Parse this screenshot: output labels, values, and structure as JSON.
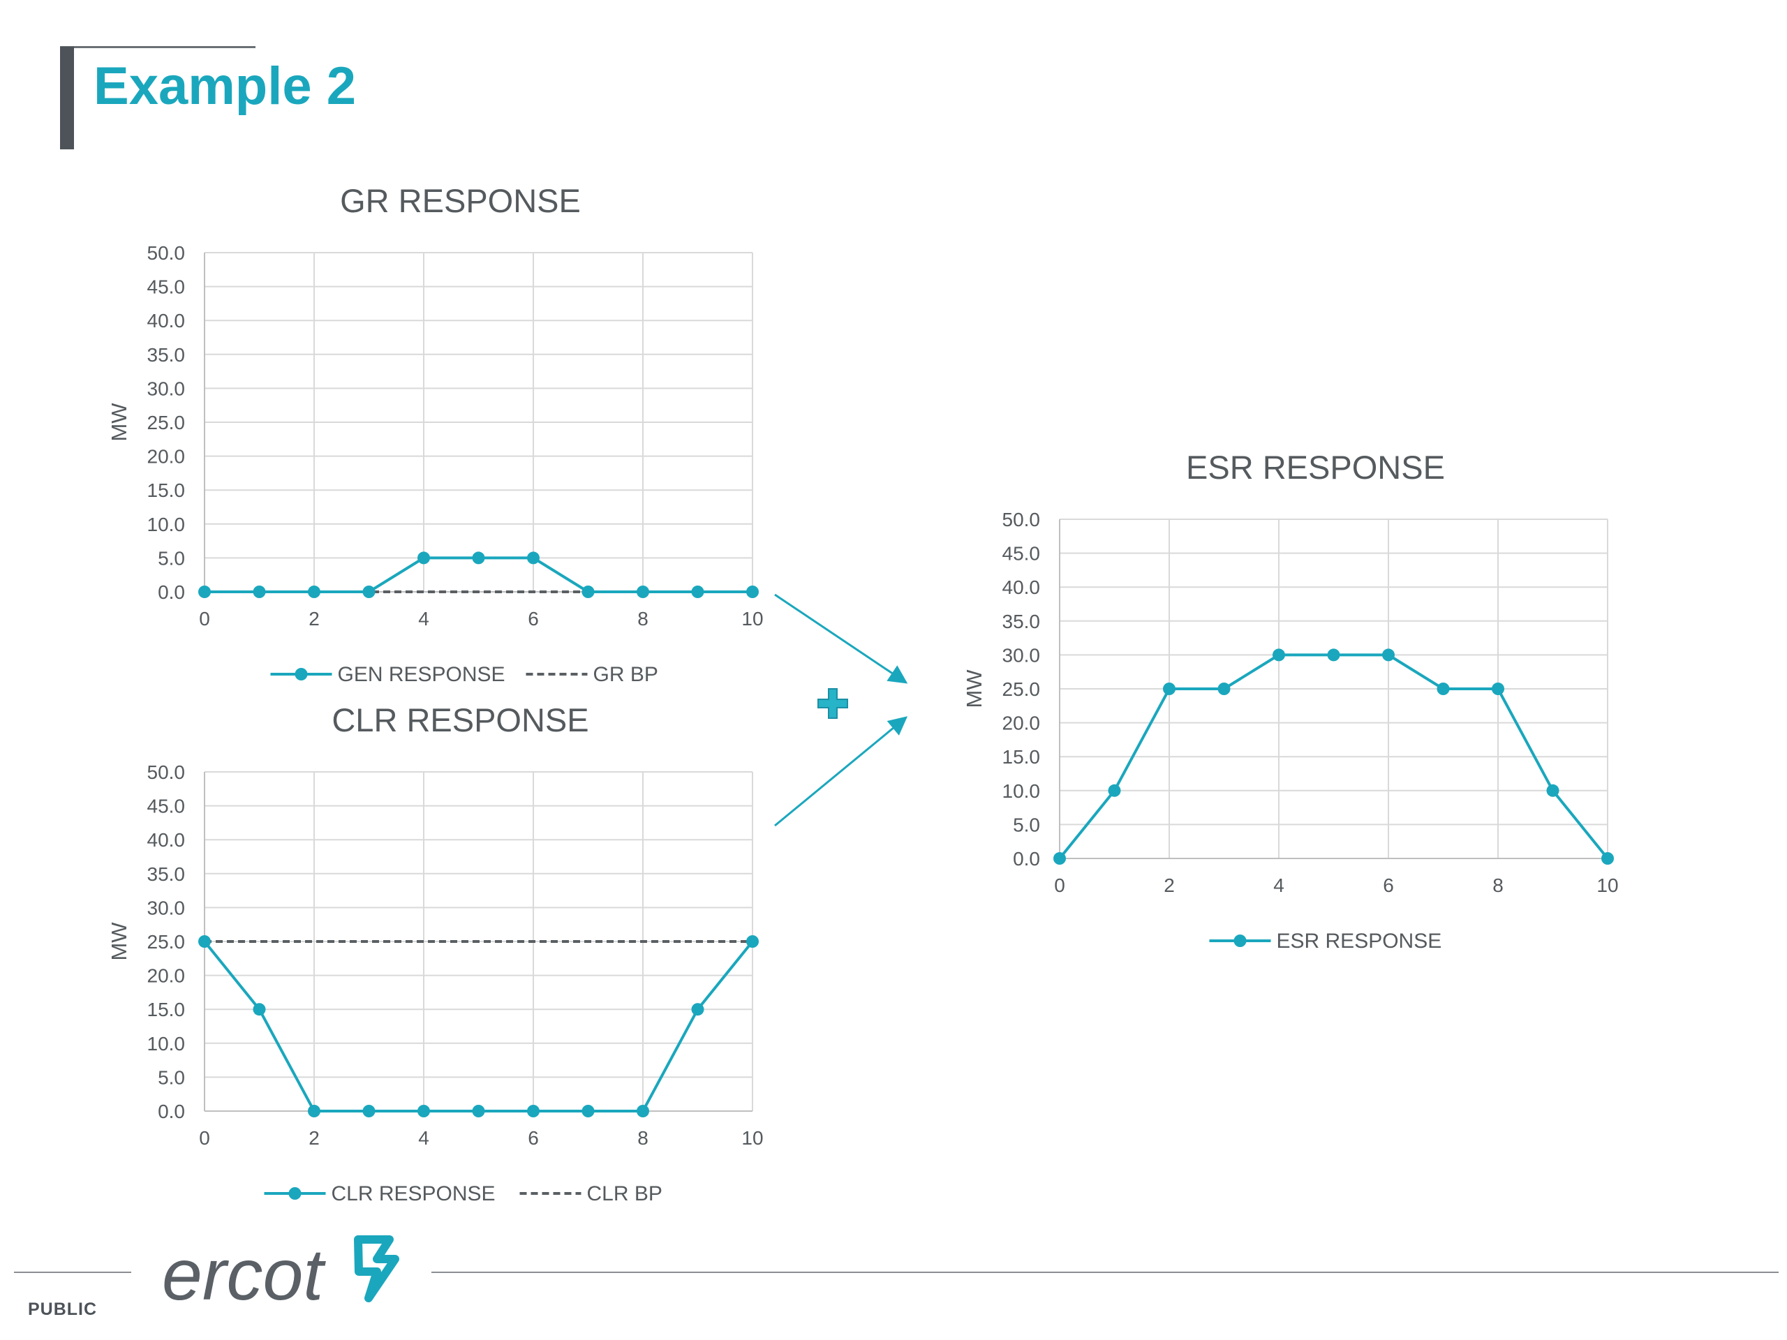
{
  "slide": {
    "title": "Example 2",
    "footer_label": "PUBLIC",
    "logo_text": "ercot",
    "plus_icon": "plus-icon",
    "arrow_icon": "arrow-right-icon"
  },
  "colors": {
    "accent": "#1aa7bd",
    "baseline": "#5a5f63",
    "grid": "#d9d9d9",
    "text": "#555a5e",
    "title_bar": "#4d5359"
  },
  "chart_data": [
    {
      "id": "gr",
      "type": "line",
      "title": "GR RESPONSE",
      "ylabel": "MW",
      "xlabel": "",
      "x": [
        0,
        1,
        2,
        3,
        4,
        5,
        6,
        7,
        8,
        9,
        10
      ],
      "xlim": [
        0,
        10
      ],
      "ylim": [
        0,
        50
      ],
      "xticks": [
        "0",
        "2",
        "4",
        "6",
        "8",
        "10"
      ],
      "yticks": [
        "0.0",
        "5.0",
        "10.0",
        "15.0",
        "20.0",
        "25.0",
        "30.0",
        "35.0",
        "40.0",
        "45.0",
        "50.0"
      ],
      "grid": true,
      "legend_position": "bottom",
      "series": [
        {
          "name": "GEN RESPONSE",
          "style": "solid-markers",
          "values": [
            0,
            0,
            0,
            0,
            5,
            5,
            5,
            0,
            0,
            0,
            0
          ]
        },
        {
          "name": "GR BP",
          "style": "dashed",
          "values": [
            0,
            0,
            0,
            0,
            0,
            0,
            0,
            0,
            0,
            0,
            0
          ]
        }
      ]
    },
    {
      "id": "clr",
      "type": "line",
      "title": "CLR RESPONSE",
      "ylabel": "MW",
      "xlabel": "",
      "x": [
        0,
        1,
        2,
        3,
        4,
        5,
        6,
        7,
        8,
        9,
        10
      ],
      "xlim": [
        0,
        10
      ],
      "ylim": [
        0,
        50
      ],
      "xticks": [
        "0",
        "2",
        "4",
        "6",
        "8",
        "10"
      ],
      "yticks": [
        "0.0",
        "5.0",
        "10.0",
        "15.0",
        "20.0",
        "25.0",
        "30.0",
        "35.0",
        "40.0",
        "45.0",
        "50.0"
      ],
      "grid": true,
      "legend_position": "bottom",
      "series": [
        {
          "name": "CLR RESPONSE",
          "style": "solid-markers",
          "values": [
            25,
            15,
            0,
            0,
            0,
            0,
            0,
            0,
            0,
            15,
            25
          ]
        },
        {
          "name": "CLR BP",
          "style": "dashed",
          "values": [
            25,
            25,
            25,
            25,
            25,
            25,
            25,
            25,
            25,
            25,
            25
          ]
        }
      ]
    },
    {
      "id": "esr",
      "type": "line",
      "title": "ESR RESPONSE",
      "ylabel": "MW",
      "xlabel": "",
      "x": [
        0,
        1,
        2,
        3,
        4,
        5,
        6,
        7,
        8,
        9,
        10
      ],
      "xlim": [
        0,
        10
      ],
      "ylim": [
        0,
        50
      ],
      "xticks": [
        "0",
        "2",
        "4",
        "6",
        "8",
        "10"
      ],
      "yticks": [
        "0.0",
        "5.0",
        "10.0",
        "15.0",
        "20.0",
        "25.0",
        "30.0",
        "35.0",
        "40.0",
        "45.0",
        "50.0"
      ],
      "grid": true,
      "legend_position": "bottom",
      "series": [
        {
          "name": "ESR RESPONSE",
          "style": "solid-markers",
          "values": [
            0,
            10,
            25,
            25,
            30,
            30,
            30,
            25,
            25,
            10,
            0
          ]
        }
      ]
    }
  ]
}
